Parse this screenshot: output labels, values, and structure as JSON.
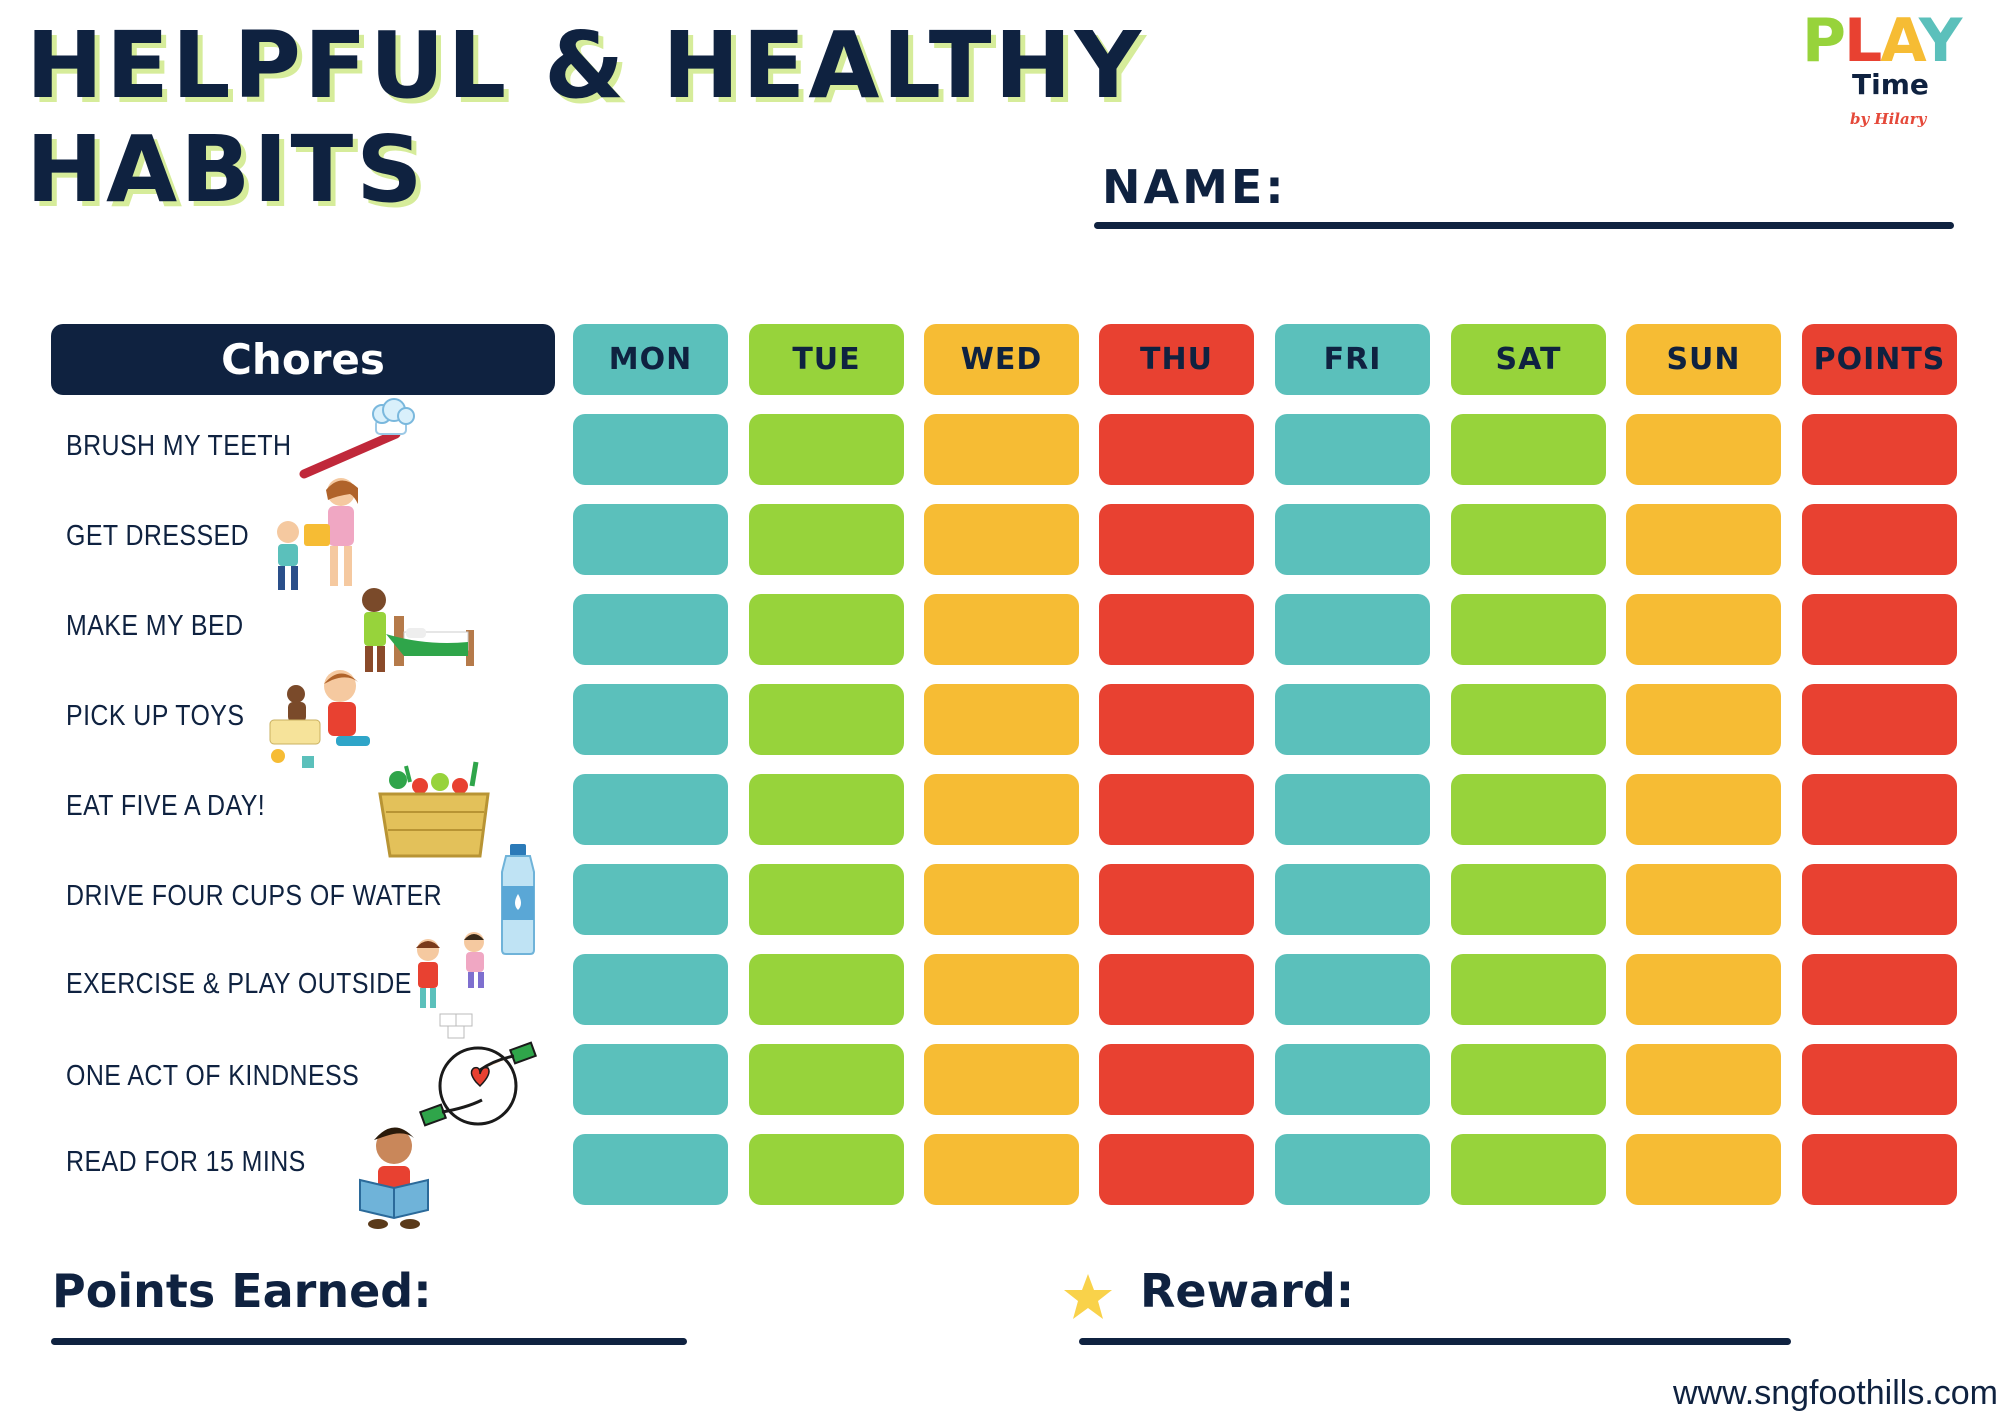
{
  "title": {
    "line1": "HELPFUL & HEALTHY",
    "line2": "HABITS"
  },
  "logo": {
    "letters": [
      "P",
      "L",
      "A",
      "Y"
    ],
    "time": "Time",
    "by": "by Hilary"
  },
  "name_label": "NAME:",
  "table": {
    "chores_header": "Chores",
    "columns": [
      {
        "label": "MON",
        "color": "#5bc0bb"
      },
      {
        "label": "TUE",
        "color": "#97d33b"
      },
      {
        "label": "WED",
        "color": "#f6bc34"
      },
      {
        "label": "THU",
        "color": "#e84131"
      },
      {
        "label": "FRI",
        "color": "#5bc0bb"
      },
      {
        "label": "SAT",
        "color": "#97d33b"
      },
      {
        "label": "SUN",
        "color": "#f6bc34"
      },
      {
        "label": "POINTS",
        "color": "#e84131"
      }
    ],
    "chores": [
      {
        "label": "BRUSH MY TEETH",
        "icon": "toothbrush-icon"
      },
      {
        "label": "GET DRESSED",
        "icon": "getting-dressed-icon"
      },
      {
        "label": "MAKE MY BED",
        "icon": "bed-icon"
      },
      {
        "label": "PICK UP TOYS",
        "icon": "toys-icon"
      },
      {
        "label": "EAT FIVE A DAY!",
        "icon": "vegetable-basket-icon"
      },
      {
        "label": "DRIVE FOUR CUPS OF WATER",
        "icon": "water-bottle-icon"
      },
      {
        "label": "EXERCISE & PLAY OUTSIDE",
        "icon": "kids-playing-icon"
      },
      {
        "label": "ONE ACT OF KINDNESS",
        "icon": "giving-heart-icon"
      },
      {
        "label": "READ FOR 15 MINS",
        "icon": "reading-child-icon"
      }
    ]
  },
  "points_earned_label": "Points Earned:",
  "reward_label": "Reward:",
  "website": "www.sngfoothills.com",
  "colors": {
    "navy": "#0f2240",
    "teal": "#5bc0bb",
    "green": "#97d33b",
    "yellow": "#f6bc34",
    "red": "#e84131"
  }
}
